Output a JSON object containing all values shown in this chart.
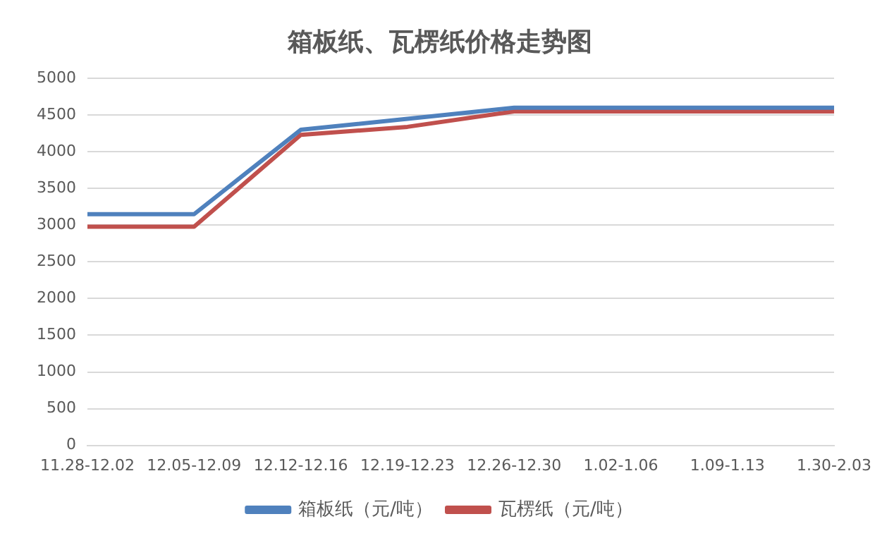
{
  "chart_data": {
    "type": "line",
    "title": "箱板纸、瓦楞纸价格走势图",
    "categories": [
      "11.28-12.02",
      "12.05-12.09",
      "12.12-12.16",
      "12.19-12.23",
      "12.26-12.30",
      "1.02-1.06",
      "1.09-1.13",
      "1.30-2.03"
    ],
    "series": [
      {
        "name": "箱板纸（元/吨）",
        "color": "#4f81bd",
        "values": [
          3150,
          3150,
          4300,
          4450,
          4600,
          4600,
          4600,
          4600
        ]
      },
      {
        "name": "瓦楞纸（元/吨）",
        "color": "#c0504d",
        "values": [
          2980,
          2980,
          4230,
          4340,
          4550,
          4550,
          4550,
          4550
        ]
      }
    ],
    "ylim": [
      0,
      5000
    ],
    "yticks": [
      0,
      500,
      1000,
      1500,
      2000,
      2500,
      3000,
      3500,
      4000,
      4500,
      5000
    ],
    "grid": "y",
    "legend": "bottom",
    "marker": "none",
    "line_style": "solid"
  }
}
